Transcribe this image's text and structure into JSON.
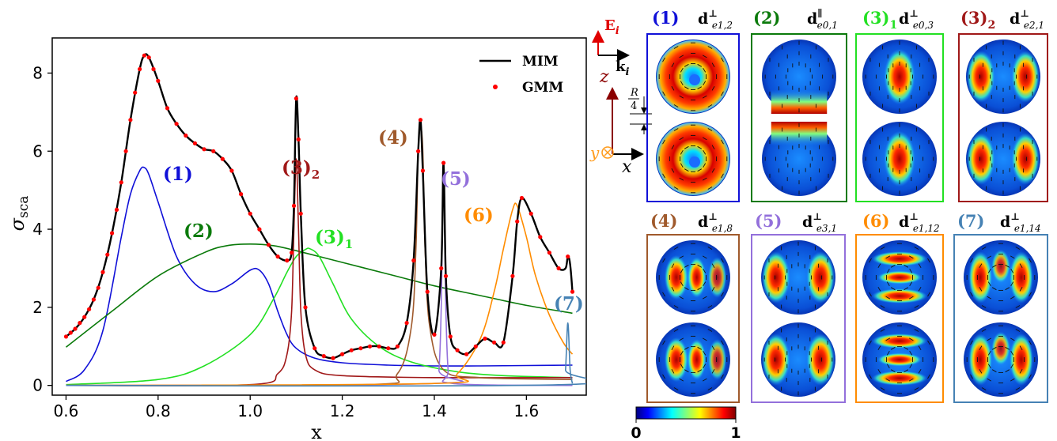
{
  "chart_data": {
    "type": "line",
    "xlabel": "x",
    "ylabel": "σsca",
    "xlim": [
      0.57,
      1.73
    ],
    "ylim": [
      -0.25,
      8.9
    ],
    "xticks": [
      "0.6",
      "0.8",
      "1.0",
      "1.2",
      "1.4",
      "1.6"
    ],
    "yticks": [
      "0",
      "2",
      "4",
      "6",
      "8"
    ],
    "legend": {
      "position": "top-right",
      "entries": [
        "MIM",
        "GMM"
      ]
    },
    "series": [
      {
        "name": "MIM",
        "style": "line",
        "color": "#000000",
        "x": [
          0.6,
          0.62,
          0.64,
          0.66,
          0.68,
          0.7,
          0.72,
          0.74,
          0.76,
          0.77,
          0.78,
          0.8,
          0.82,
          0.84,
          0.86,
          0.88,
          0.9,
          0.92,
          0.94,
          0.96,
          0.98,
          1.0,
          1.02,
          1.04,
          1.06,
          1.08,
          1.09,
          1.095,
          1.1,
          1.105,
          1.11,
          1.12,
          1.14,
          1.16,
          1.18,
          1.2,
          1.22,
          1.24,
          1.26,
          1.28,
          1.3,
          1.32,
          1.34,
          1.355,
          1.365,
          1.37,
          1.375,
          1.385,
          1.4,
          1.415,
          1.42,
          1.425,
          1.435,
          1.45,
          1.47,
          1.49,
          1.51,
          1.53,
          1.55,
          1.57,
          1.58,
          1.59,
          1.61,
          1.63,
          1.65,
          1.67,
          1.685,
          1.69,
          1.695,
          1.7
        ],
        "y": [
          1.25,
          1.45,
          1.75,
          2.2,
          2.9,
          3.9,
          5.2,
          6.8,
          8.1,
          8.45,
          8.4,
          7.8,
          7.1,
          6.7,
          6.4,
          6.2,
          6.05,
          6.0,
          5.8,
          5.5,
          4.9,
          4.4,
          4.0,
          3.6,
          3.3,
          3.2,
          3.4,
          4.6,
          7.35,
          6.3,
          4.4,
          2.0,
          0.95,
          0.75,
          0.7,
          0.8,
          0.9,
          0.95,
          1.0,
          1.0,
          0.95,
          1.0,
          1.6,
          3.2,
          6.0,
          6.8,
          5.5,
          2.4,
          1.3,
          3.0,
          5.7,
          2.8,
          1.25,
          0.9,
          0.8,
          1.0,
          1.2,
          1.1,
          1.1,
          2.8,
          4.2,
          4.8,
          4.4,
          3.8,
          3.4,
          3.0,
          3.0,
          3.3,
          3.1,
          2.4
        ]
      },
      {
        "name": "GMM",
        "style": "markers",
        "color": "#ff0000",
        "x": [
          0.6,
          0.61,
          0.62,
          0.63,
          0.64,
          0.65,
          0.66,
          0.67,
          0.68,
          0.69,
          0.7,
          0.71,
          0.72,
          0.73,
          0.74,
          0.75,
          0.76,
          0.77,
          0.78,
          0.79,
          0.8,
          0.82,
          0.84,
          0.86,
          0.88,
          0.9,
          0.92,
          0.94,
          0.96,
          0.98,
          1.0,
          1.02,
          1.04,
          1.06,
          1.08,
          1.09,
          1.095,
          1.1,
          1.105,
          1.11,
          1.12,
          1.14,
          1.16,
          1.18,
          1.2,
          1.22,
          1.24,
          1.26,
          1.28,
          1.3,
          1.32,
          1.34,
          1.355,
          1.365,
          1.37,
          1.375,
          1.385,
          1.4,
          1.415,
          1.42,
          1.425,
          1.435,
          1.45,
          1.47,
          1.49,
          1.51,
          1.53,
          1.55,
          1.57,
          1.58,
          1.59,
          1.61,
          1.63,
          1.65,
          1.67,
          1.69,
          1.7
        ],
        "y": [
          1.25,
          1.35,
          1.45,
          1.6,
          1.75,
          1.95,
          2.2,
          2.5,
          2.9,
          3.35,
          3.9,
          4.5,
          5.2,
          6.0,
          6.8,
          7.5,
          8.1,
          8.45,
          8.4,
          8.1,
          7.8,
          7.1,
          6.7,
          6.4,
          6.2,
          6.05,
          6.0,
          5.8,
          5.5,
          4.9,
          4.4,
          4.0,
          3.6,
          3.3,
          3.2,
          3.4,
          4.6,
          7.35,
          6.3,
          4.4,
          2.0,
          0.95,
          0.75,
          0.7,
          0.8,
          0.9,
          0.95,
          1.0,
          1.0,
          0.95,
          1.0,
          1.6,
          3.2,
          6.0,
          6.8,
          5.5,
          2.4,
          1.3,
          3.0,
          5.7,
          2.8,
          1.25,
          0.9,
          0.8,
          1.0,
          1.2,
          1.1,
          1.1,
          2.8,
          4.2,
          4.8,
          4.4,
          3.8,
          3.4,
          3.0,
          3.3,
          2.4
        ]
      },
      {
        "label": "(1)",
        "color": "#1010d8",
        "x": [
          0.6,
          0.64,
          0.68,
          0.72,
          0.74,
          0.76,
          0.77,
          0.78,
          0.8,
          0.84,
          0.88,
          0.92,
          0.96,
          1.0,
          1.02,
          1.04,
          1.06,
          1.08,
          1.1,
          1.14,
          1.2,
          1.3,
          1.4,
          1.5,
          1.6,
          1.7
        ],
        "y": [
          0.1,
          0.4,
          1.4,
          3.8,
          4.9,
          5.5,
          5.58,
          5.4,
          4.7,
          3.3,
          2.6,
          2.4,
          2.6,
          2.95,
          2.95,
          2.6,
          1.9,
          1.3,
          0.95,
          0.7,
          0.58,
          0.52,
          0.5,
          0.5,
          0.51,
          0.52
        ]
      },
      {
        "label": "(2)",
        "color": "#0a7a0a",
        "x": [
          0.6,
          0.7,
          0.8,
          0.9,
          0.95,
          1.0,
          1.05,
          1.1,
          1.2,
          1.3,
          1.4,
          1.5,
          1.6,
          1.7
        ],
        "y": [
          0.98,
          1.9,
          2.8,
          3.4,
          3.58,
          3.62,
          3.58,
          3.45,
          3.15,
          2.85,
          2.55,
          2.3,
          2.05,
          1.85
        ]
      },
      {
        "label": "(3)₁",
        "color": "#22e022",
        "x": [
          0.6,
          0.8,
          0.9,
          1.0,
          1.05,
          1.08,
          1.1,
          1.12,
          1.13,
          1.15,
          1.18,
          1.22,
          1.28,
          1.35,
          1.45,
          1.55,
          1.7
        ],
        "y": [
          0.02,
          0.15,
          0.5,
          1.3,
          2.2,
          2.9,
          3.3,
          3.48,
          3.5,
          3.3,
          2.6,
          1.7,
          1.0,
          0.6,
          0.35,
          0.25,
          0.2
        ]
      },
      {
        "label": "(3)₂",
        "color": "#a01818",
        "x": [
          0.6,
          1.0,
          1.06,
          1.08,
          1.09,
          1.095,
          1.1,
          1.105,
          1.11,
          1.12,
          1.14,
          1.2,
          1.4,
          1.7
        ],
        "y": [
          0.0,
          0.02,
          0.3,
          0.8,
          1.9,
          4.0,
          5.8,
          4.0,
          1.9,
          0.8,
          0.4,
          0.25,
          0.2,
          0.2
        ]
      },
      {
        "label": "(4)",
        "color": "#a05a2c",
        "x": [
          0.6,
          1.25,
          1.32,
          1.35,
          1.36,
          1.365,
          1.37,
          1.375,
          1.38,
          1.39,
          1.42,
          1.5,
          1.7
        ],
        "y": [
          0.0,
          0.02,
          0.3,
          1.5,
          3.5,
          6.0,
          6.6,
          6.0,
          3.5,
          1.5,
          0.4,
          0.2,
          0.15
        ]
      },
      {
        "label": "(5)",
        "color": "#9370db",
        "x": [
          0.6,
          1.4,
          1.41,
          1.415,
          1.42,
          1.425,
          1.43,
          1.44,
          1.7
        ],
        "y": [
          0.0,
          0.05,
          0.4,
          2.0,
          5.7,
          2.0,
          0.4,
          0.05,
          0.0
        ]
      },
      {
        "label": "(6)",
        "color": "#ff8c00",
        "x": [
          0.6,
          1.4,
          1.45,
          1.5,
          1.53,
          1.55,
          1.57,
          1.58,
          1.6,
          1.62,
          1.65,
          1.68,
          1.7
        ],
        "y": [
          0.0,
          0.05,
          0.3,
          1.2,
          2.4,
          3.5,
          4.5,
          4.6,
          3.8,
          2.8,
          1.8,
          1.1,
          0.8
        ]
      },
      {
        "label": "(7)",
        "color": "#4682b4",
        "x": [
          0.6,
          1.68,
          1.685,
          1.69,
          1.695,
          1.7
        ],
        "y": [
          0.0,
          0.02,
          0.4,
          1.6,
          0.4,
          0.05
        ]
      }
    ],
    "annotations": [
      {
        "text": "(1)",
        "color": "#1010d8"
      },
      {
        "text": "(2)",
        "color": "#0a7a0a"
      },
      {
        "text": "(3)",
        "sub": "1",
        "color": "#22e022"
      },
      {
        "text": "(3)",
        "sub": "2",
        "color": "#a01818"
      },
      {
        "text": "(4)",
        "color": "#a05a2c"
      },
      {
        "text": "(5)",
        "color": "#9370db"
      },
      {
        "text": "(6)",
        "color": "#ff8c00"
      },
      {
        "text": "(7)",
        "color": "#4682b4"
      }
    ]
  },
  "inset": {
    "E_label": "E",
    "E_sub": "i",
    "k_label": "k",
    "k_sub": "i",
    "z_label": "z",
    "y_label": "y",
    "x_label": "x",
    "R_label": "R",
    "R_den": "4"
  },
  "panels": [
    {
      "num": "(1)",
      "color": "#1010d8",
      "d_sup": "⊥",
      "d_sub": "e1,2"
    },
    {
      "num": "(2)",
      "color": "#0a7a0a",
      "d_sup": "∥",
      "d_sub": "e0,1"
    },
    {
      "num": "(3)",
      "num_sub": "1",
      "color": "#22e022",
      "d_sup": "⊥",
      "d_sub": "e0,3"
    },
    {
      "num": "(3)",
      "num_sub": "2",
      "color": "#a01818",
      "d_sup": "⊥",
      "d_sub": "e2,1"
    },
    {
      "num": "(4)",
      "color": "#a05a2c",
      "d_sup": "⊥",
      "d_sub": "e1,8"
    },
    {
      "num": "(5)",
      "color": "#9370db",
      "d_sup": "⊥",
      "d_sub": "e3,1"
    },
    {
      "num": "(6)",
      "color": "#ff8c00",
      "d_sup": "⊥",
      "d_sub": "e1,12"
    },
    {
      "num": "(7)",
      "color": "#4682b4",
      "d_sup": "⊥",
      "d_sub": "e1,14"
    }
  ],
  "colorbar": {
    "min_label": "0",
    "max_label": "1"
  },
  "legend_labels": {
    "mim": "MIM",
    "gmm": "GMM"
  }
}
